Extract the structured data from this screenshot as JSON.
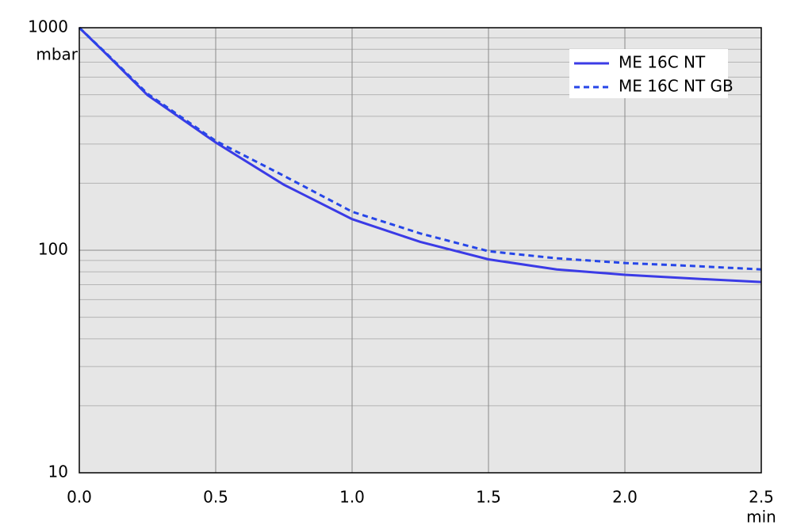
{
  "chart_data": {
    "type": "line",
    "x_label": "min",
    "y_label": "mbar",
    "x": [
      0,
      0.1,
      0.25,
      0.5,
      0.75,
      1.0,
      1.25,
      1.5,
      1.75,
      2.0,
      2.25,
      2.5
    ],
    "series": [
      {
        "name": "ME 16C NT",
        "color": "#3b3be6",
        "dashed": false,
        "values": [
          1000,
          760,
          498,
          305,
          197,
          138,
          109,
          91,
          82,
          77.6,
          74.6,
          72
        ]
      },
      {
        "name": "ME 16C NT GB",
        "color": "#2646e8",
        "dashed": true,
        "values": [
          1000,
          765,
          505,
          310,
          216,
          149,
          119,
          99,
          92,
          87.6,
          85,
          82
        ]
      }
    ],
    "xlim": [
      0,
      2.5
    ],
    "xticks": [
      {
        "value": 0,
        "label": "0.0"
      },
      0.5,
      {
        "value": 1,
        "label": "1.0"
      },
      1.5,
      {
        "value": 2,
        "label": "2.0"
      },
      2.5
    ],
    "ylim": [
      10,
      1000
    ],
    "log_y": true,
    "yticks": [
      10,
      100,
      1000
    ],
    "minor_yticks": [
      20,
      30,
      40,
      50,
      60,
      70,
      80,
      90,
      200,
      300,
      400,
      500,
      600,
      700,
      800,
      900
    ],
    "grid": true,
    "legend": "upper right"
  }
}
